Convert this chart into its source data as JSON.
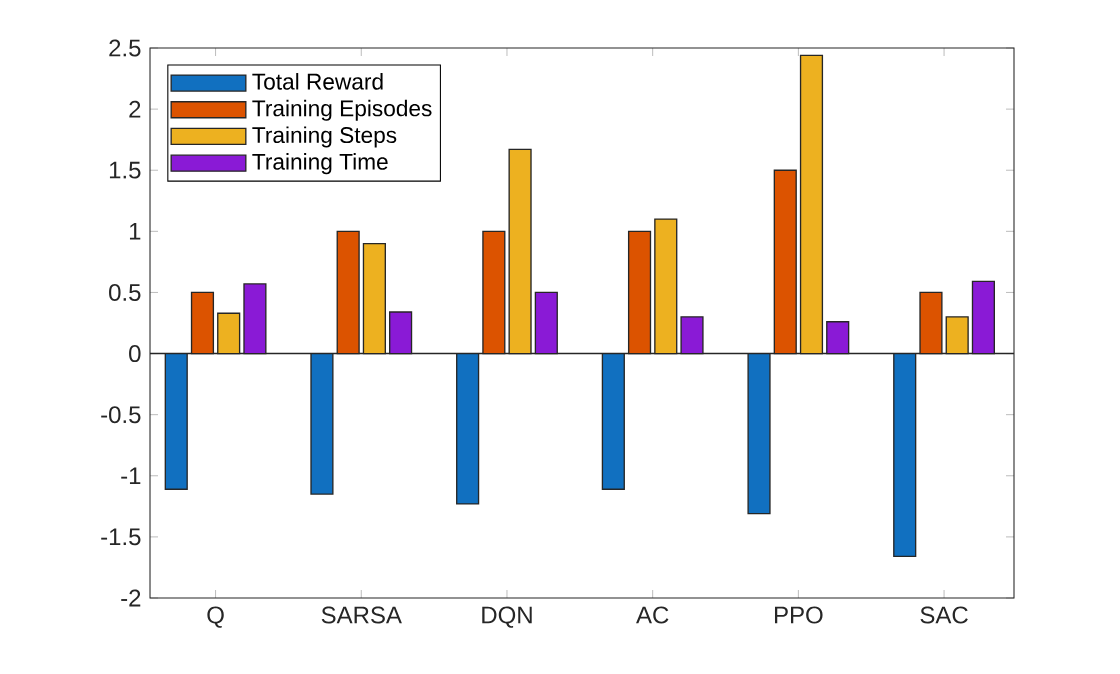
{
  "chart_data": {
    "type": "bar",
    "categories": [
      "Q",
      "SARSA",
      "DQN",
      "AC",
      "PPO",
      "SAC"
    ],
    "series": [
      {
        "name": "Total Reward",
        "color": "#1170c0",
        "values": [
          -1.11,
          -1.15,
          -1.23,
          -1.11,
          -1.31,
          -1.66
        ]
      },
      {
        "name": "Training Episodes",
        "color": "#dc5300",
        "values": [
          0.5,
          1,
          1,
          1,
          1.5,
          0.5
        ]
      },
      {
        "name": "Training Steps",
        "color": "#edb120",
        "values": [
          0.33,
          0.9,
          1.67,
          1.1,
          2.44,
          0.3
        ]
      },
      {
        "name": "Training Time",
        "color": "#8a1ad6",
        "values": [
          0.57,
          0.34,
          0.5,
          0.3,
          0.26,
          0.59
        ]
      }
    ],
    "ylim": [
      -2,
      2.5
    ],
    "yticks": [
      -2,
      -1.5,
      -1,
      -0.5,
      0,
      0.5,
      1,
      1.5,
      2,
      2.5
    ],
    "legend": "top left"
  }
}
